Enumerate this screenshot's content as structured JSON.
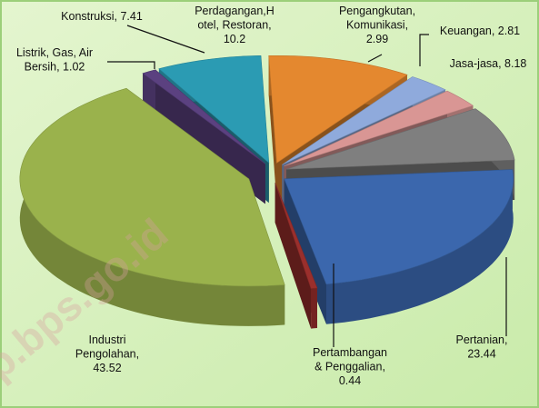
{
  "chart_data": {
    "type": "pie3d",
    "values": [
      23.44,
      0.44,
      43.52,
      1.02,
      7.41,
      10.2,
      2.99,
      2.81,
      8.18
    ],
    "value_labels": [
      "Pertanian,\n23.44",
      "Pertambangan\n& Penggalian,\n0.44",
      "Industri\nPengolahan,\n43.52",
      "Listrik, Gas, Air\nBersih, 1.02",
      "Konstruksi, 7.41",
      "Perdagangan,H\notel, Restoran,\n10.2",
      "Pengangkutan,\nKomunikasi,\n2.99",
      "Keuangan, 2.81",
      "Jasa-jasa, 8.18"
    ],
    "colors": [
      "#3b67ad",
      "#9a2f2c",
      "#9ab24c",
      "#5b4180",
      "#2b9bb3",
      "#e4882f",
      "#8faadc",
      "#d99694",
      "#7f7f7f"
    ],
    "watermark": "p.bps.go.id"
  }
}
